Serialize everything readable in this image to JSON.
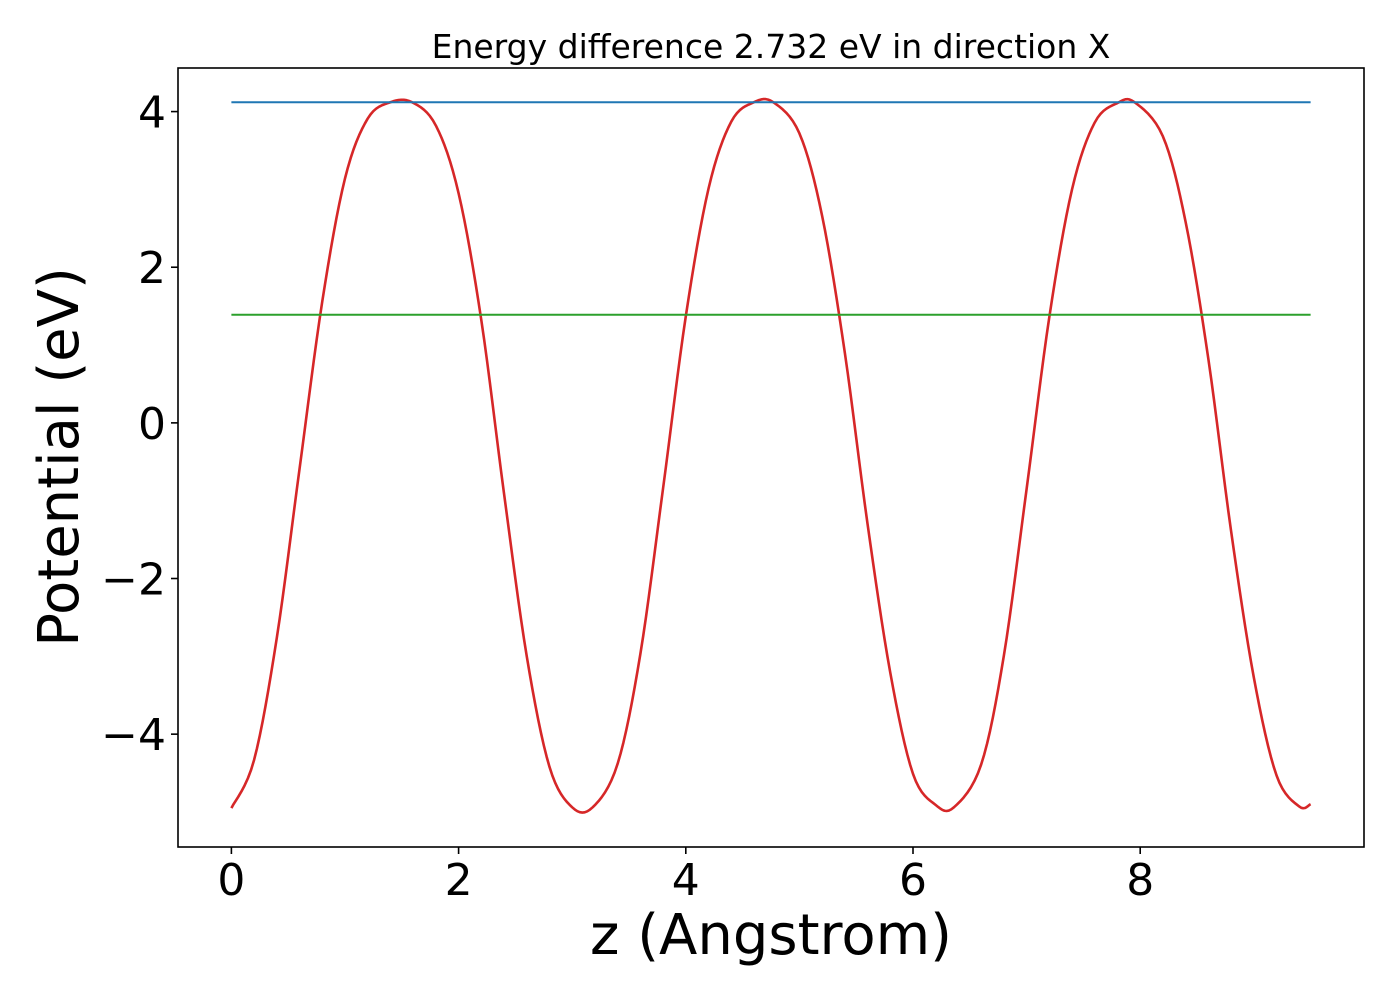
{
  "chart_data": {
    "type": "line",
    "title": "Energy difference 2.732 eV in direction X",
    "xlabel": "z (Angstrom)",
    "ylabel": "Potential (eV)",
    "xlim": [
      -0.47,
      9.97
    ],
    "ylim": [
      -5.45,
      4.56
    ],
    "xticks": [
      0,
      2,
      4,
      6,
      8
    ],
    "xtick_labels": [
      "0",
      "2",
      "4",
      "6",
      "8"
    ],
    "yticks": [
      -4,
      -2,
      0,
      2,
      4
    ],
    "ytick_labels": [
      "−4",
      "−2",
      "0",
      "2",
      "4"
    ],
    "grid": false,
    "legend": "none",
    "series": [
      {
        "color": "#d62728",
        "style": "curve",
        "x": [
          0.0,
          0.2,
          0.4,
          0.6,
          0.8,
          1.0,
          1.2,
          1.4,
          1.59,
          1.8,
          2.0,
          2.2,
          2.4,
          2.6,
          2.8,
          3.0,
          3.18,
          3.4,
          3.6,
          3.8,
          4.0,
          4.2,
          4.4,
          4.6,
          4.77,
          5.0,
          5.2,
          5.4,
          5.6,
          5.8,
          6.0,
          6.2,
          6.36,
          6.6,
          6.8,
          7.0,
          7.2,
          7.4,
          7.6,
          7.8,
          7.95,
          8.2,
          8.4,
          8.6,
          8.8,
          9.0,
          9.2,
          9.4,
          9.5
        ],
        "y": [
          -4.95,
          -4.33,
          -2.76,
          -0.59,
          1.56,
          3.14,
          3.91,
          4.12,
          4.12,
          3.82,
          2.95,
          1.32,
          -0.91,
          -3.0,
          -4.42,
          -4.94,
          -4.94,
          -4.38,
          -2.97,
          -0.84,
          1.37,
          3.01,
          3.87,
          4.12,
          4.12,
          3.72,
          2.66,
          0.9,
          -1.3,
          -3.21,
          -4.51,
          -4.91,
          -4.94,
          -4.39,
          -2.99,
          -0.85,
          1.36,
          3.0,
          3.86,
          4.11,
          4.12,
          3.68,
          2.58,
          0.82,
          -1.39,
          -3.27,
          -4.53,
          -4.93,
          -4.9
        ]
      },
      {
        "color": "#1f77b4",
        "style": "hline",
        "x": [
          0.0,
          9.5
        ],
        "y": [
          4.12,
          4.12
        ]
      },
      {
        "color": "#2ca02c",
        "style": "hline",
        "x": [
          0.0,
          9.5
        ],
        "y": [
          1.39,
          1.39
        ]
      }
    ]
  }
}
